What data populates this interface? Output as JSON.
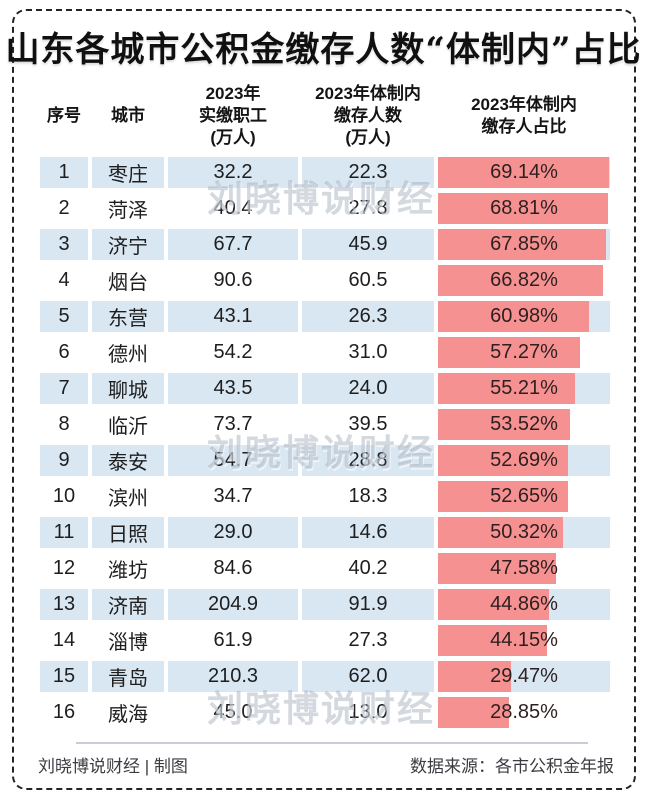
{
  "title": "山东各城市公积金缴存人数“体制内”占比",
  "watermark": {
    "text": "刘晓博说财经"
  },
  "footer": {
    "left": "刘晓博说财经 | 制图",
    "right": "数据来源：各市公积金年报"
  },
  "colors": {
    "bar": "#f59190",
    "row_alt": "#d9e7f3",
    "border": "#242424",
    "title_text": "#101010",
    "body_text": "#1e1e1e",
    "footer_text": "#3c3c42",
    "watermark_gray": "#94a0b0"
  },
  "table": {
    "columns": [
      {
        "label": "序号"
      },
      {
        "label": "城市"
      },
      {
        "label": "2023年\n实缴职工\n(万人)"
      },
      {
        "label": "2023年体制内\n缴存人数\n(万人)"
      },
      {
        "label": "2023年体制内\n缴存人占比"
      }
    ],
    "rows": [
      {
        "rank": "1",
        "city": "枣庄",
        "employees": "32.2",
        "in_system": "22.3",
        "pct": "69.14%",
        "pct_value": 69.14
      },
      {
        "rank": "2",
        "city": "菏泽",
        "employees": "40.4",
        "in_system": "27.8",
        "pct": "68.81%",
        "pct_value": 68.81
      },
      {
        "rank": "3",
        "city": "济宁",
        "employees": "67.7",
        "in_system": "45.9",
        "pct": "67.85%",
        "pct_value": 67.85
      },
      {
        "rank": "4",
        "city": "烟台",
        "employees": "90.6",
        "in_system": "60.5",
        "pct": "66.82%",
        "pct_value": 66.82
      },
      {
        "rank": "5",
        "city": "东营",
        "employees": "43.1",
        "in_system": "26.3",
        "pct": "60.98%",
        "pct_value": 60.98
      },
      {
        "rank": "6",
        "city": "德州",
        "employees": "54.2",
        "in_system": "31.0",
        "pct": "57.27%",
        "pct_value": 57.27
      },
      {
        "rank": "7",
        "city": "聊城",
        "employees": "43.5",
        "in_system": "24.0",
        "pct": "55.21%",
        "pct_value": 55.21
      },
      {
        "rank": "8",
        "city": "临沂",
        "employees": "73.7",
        "in_system": "39.5",
        "pct": "53.52%",
        "pct_value": 53.52
      },
      {
        "rank": "9",
        "city": "泰安",
        "employees": "54.7",
        "in_system": "28.8",
        "pct": "52.69%",
        "pct_value": 52.69
      },
      {
        "rank": "10",
        "city": "滨州",
        "employees": "34.7",
        "in_system": "18.3",
        "pct": "52.65%",
        "pct_value": 52.65
      },
      {
        "rank": "11",
        "city": "日照",
        "employees": "29.0",
        "in_system": "14.6",
        "pct": "50.32%",
        "pct_value": 50.32
      },
      {
        "rank": "12",
        "city": "潍坊",
        "employees": "84.6",
        "in_system": "40.2",
        "pct": "47.58%",
        "pct_value": 47.58
      },
      {
        "rank": "13",
        "city": "济南",
        "employees": "204.9",
        "in_system": "91.9",
        "pct": "44.86%",
        "pct_value": 44.86
      },
      {
        "rank": "14",
        "city": "淄博",
        "employees": "61.9",
        "in_system": "27.3",
        "pct": "44.15%",
        "pct_value": 44.15
      },
      {
        "rank": "15",
        "city": "青岛",
        "employees": "210.3",
        "in_system": "62.0",
        "pct": "29.47%",
        "pct_value": 29.47
      },
      {
        "rank": "16",
        "city": "威海",
        "employees": "45.0",
        "in_system": "13.0",
        "pct": "28.85%",
        "pct_value": 28.85
      }
    ]
  },
  "chart_data": {
    "type": "table",
    "title": "山东各城市公积金缴存人数“体制内”占比",
    "columns": [
      "序号",
      "城市",
      "2023年实缴职工(万人)",
      "2023年体制内缴存人数(万人)",
      "2023年体制内缴存人占比"
    ],
    "rows": [
      [
        1,
        "枣庄",
        32.2,
        22.3,
        69.14
      ],
      [
        2,
        "菏泽",
        40.4,
        27.8,
        68.81
      ],
      [
        3,
        "济宁",
        67.7,
        45.9,
        67.85
      ],
      [
        4,
        "烟台",
        90.6,
        60.5,
        66.82
      ],
      [
        5,
        "东营",
        43.1,
        26.3,
        60.98
      ],
      [
        6,
        "德州",
        54.2,
        31.0,
        57.27
      ],
      [
        7,
        "聊城",
        43.5,
        24.0,
        55.21
      ],
      [
        8,
        "临沂",
        73.7,
        39.5,
        53.52
      ],
      [
        9,
        "泰安",
        54.7,
        28.8,
        52.69
      ],
      [
        10,
        "滨州",
        34.7,
        18.3,
        52.65
      ],
      [
        11,
        "日照",
        29.0,
        14.6,
        50.32
      ],
      [
        12,
        "潍坊",
        84.6,
        40.2,
        47.58
      ],
      [
        13,
        "济南",
        204.9,
        91.9,
        44.86
      ],
      [
        14,
        "淄博",
        61.9,
        27.3,
        44.15
      ],
      [
        15,
        "青岛",
        210.3,
        62.0,
        29.47
      ],
      [
        16,
        "威海",
        45.0,
        13.0,
        28.85
      ]
    ],
    "pct_unit": "%",
    "bar_column": "2023年体制内缴存人占比",
    "bar_scale_max": 69.5,
    "legend": "none",
    "grid": "off"
  }
}
